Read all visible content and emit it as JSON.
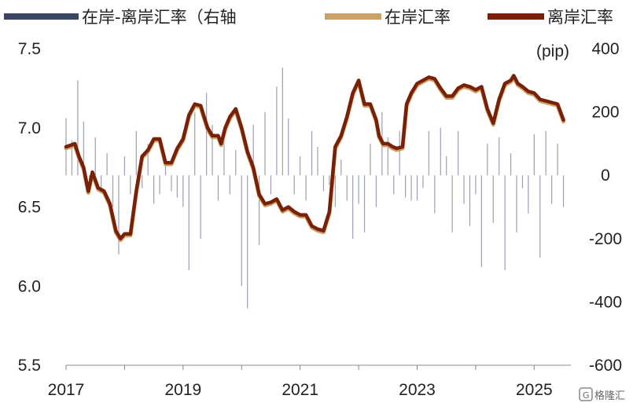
{
  "chart_data": {
    "type": "line",
    "legend": [
      {
        "label": "在岸-离岸汇率（右轴",
        "color": "#3b4566",
        "kind": "bar"
      },
      {
        "label": "在岸汇率",
        "color": "#c9a266",
        "kind": "line"
      },
      {
        "label": "离岸汇率",
        "color": "#7a2006",
        "kind": "line"
      }
    ],
    "legend_placement": "top",
    "y_left": {
      "ylim": [
        5.5,
        7.5
      ],
      "ticks": [
        "5.5",
        "6.0",
        "6.5",
        "7.0",
        "7.5"
      ]
    },
    "y_right": {
      "ylim": [
        -600,
        400
      ],
      "ticks": [
        "-600",
        "-400",
        "-200",
        "0",
        "200",
        "400"
      ],
      "unit": "(pip)"
    },
    "x_axis": {
      "xlim": [
        2017.0,
        2025.6
      ],
      "ticks": [
        "2017",
        "2019",
        "2021",
        "2023",
        "2025"
      ]
    },
    "grid": false,
    "series": [
      {
        "name": "离岸汇率",
        "color": "#7a2006",
        "x": [
          2017.0,
          2017.08,
          2017.15,
          2017.22,
          2017.3,
          2017.38,
          2017.45,
          2017.55,
          2017.65,
          2017.75,
          2017.85,
          2017.93,
          2018.0,
          2018.1,
          2018.2,
          2018.3,
          2018.4,
          2018.5,
          2018.6,
          2018.7,
          2018.8,
          2018.9,
          2019.0,
          2019.1,
          2019.2,
          2019.3,
          2019.35,
          2019.42,
          2019.5,
          2019.6,
          2019.65,
          2019.72,
          2019.8,
          2019.9,
          2020.0,
          2020.1,
          2020.2,
          2020.3,
          2020.4,
          2020.5,
          2020.6,
          2020.7,
          2020.8,
          2020.9,
          2021.0,
          2021.1,
          2021.2,
          2021.3,
          2021.4,
          2021.5,
          2021.6,
          2021.7,
          2021.8,
          2021.9,
          2022.0,
          2022.1,
          2022.2,
          2022.3,
          2022.35,
          2022.42,
          2022.5,
          2022.58,
          2022.65,
          2022.75,
          2022.82,
          2022.9,
          2023.0,
          2023.1,
          2023.2,
          2023.3,
          2023.4,
          2023.5,
          2023.6,
          2023.7,
          2023.8,
          2023.9,
          2024.0,
          2024.1,
          2024.2,
          2024.3,
          2024.4,
          2024.5,
          2024.6,
          2024.65,
          2024.72,
          2024.8,
          2024.9,
          2025.0,
          2025.1,
          2025.2,
          2025.3,
          2025.4,
          2025.5
        ],
        "values": [
          6.88,
          6.89,
          6.9,
          6.82,
          6.75,
          6.6,
          6.72,
          6.62,
          6.6,
          6.52,
          6.35,
          6.3,
          6.33,
          6.33,
          6.6,
          6.82,
          6.86,
          6.93,
          6.93,
          6.78,
          6.78,
          6.87,
          6.93,
          7.08,
          7.15,
          7.14,
          7.08,
          7.0,
          6.95,
          6.95,
          6.9,
          7.0,
          7.07,
          7.12,
          7.0,
          6.85,
          6.75,
          6.58,
          6.52,
          6.53,
          6.55,
          6.48,
          6.5,
          6.47,
          6.45,
          6.45,
          6.38,
          6.36,
          6.35,
          6.47,
          6.88,
          6.95,
          7.07,
          7.22,
          7.3,
          7.15,
          7.15,
          7.05,
          6.95,
          6.9,
          6.9,
          6.88,
          6.87,
          6.88,
          7.15,
          7.22,
          7.28,
          7.3,
          7.32,
          7.31,
          7.25,
          7.2,
          7.2,
          7.25,
          7.27,
          7.26,
          7.24,
          7.26,
          7.12,
          7.03,
          7.18,
          7.28,
          7.3,
          7.33,
          7.28,
          7.26,
          7.23,
          7.22,
          7.18,
          7.17,
          7.16,
          7.15,
          7.05
        ]
      },
      {
        "name": "在岸汇率",
        "color": "#c9a266",
        "x": [
          2017.0,
          2017.08,
          2017.15,
          2017.22,
          2017.3,
          2017.38,
          2017.45,
          2017.55,
          2017.65,
          2017.75,
          2017.85,
          2017.93,
          2018.0,
          2018.1,
          2018.2,
          2018.3,
          2018.4,
          2018.5,
          2018.6,
          2018.7,
          2018.8,
          2018.9,
          2019.0,
          2019.1,
          2019.2,
          2019.3,
          2019.35,
          2019.42,
          2019.5,
          2019.6,
          2019.65,
          2019.72,
          2019.8,
          2019.9,
          2020.0,
          2020.1,
          2020.2,
          2020.3,
          2020.4,
          2020.5,
          2020.6,
          2020.7,
          2020.8,
          2020.9,
          2021.0,
          2021.1,
          2021.2,
          2021.3,
          2021.4,
          2021.5,
          2021.6,
          2021.7,
          2021.8,
          2021.9,
          2022.0,
          2022.1,
          2022.2,
          2022.3,
          2022.35,
          2022.42,
          2022.5,
          2022.58,
          2022.65,
          2022.75,
          2022.82,
          2022.9,
          2023.0,
          2023.1,
          2023.2,
          2023.3,
          2023.4,
          2023.5,
          2023.6,
          2023.7,
          2023.8,
          2023.9,
          2024.0,
          2024.1,
          2024.2,
          2024.3,
          2024.4,
          2024.5,
          2024.6,
          2024.65,
          2024.72,
          2024.8,
          2024.9,
          2025.0,
          2025.1,
          2025.2,
          2025.3,
          2025.4,
          2025.5
        ],
        "values": [
          6.87,
          6.88,
          6.89,
          6.81,
          6.74,
          6.59,
          6.71,
          6.61,
          6.59,
          6.51,
          6.34,
          6.29,
          6.32,
          6.32,
          6.59,
          6.81,
          6.85,
          6.92,
          6.92,
          6.77,
          6.77,
          6.86,
          6.92,
          7.07,
          7.14,
          7.13,
          7.07,
          6.99,
          6.94,
          6.94,
          6.89,
          6.99,
          7.06,
          7.11,
          6.99,
          6.84,
          6.74,
          6.57,
          6.51,
          6.52,
          6.54,
          6.47,
          6.49,
          6.46,
          6.44,
          6.44,
          6.37,
          6.35,
          6.34,
          6.46,
          6.87,
          6.94,
          7.06,
          7.21,
          7.29,
          7.14,
          7.14,
          7.04,
          6.94,
          6.89,
          6.89,
          6.87,
          6.86,
          6.87,
          7.14,
          7.21,
          7.27,
          7.29,
          7.31,
          7.3,
          7.24,
          7.19,
          7.19,
          7.24,
          7.26,
          7.25,
          7.23,
          7.25,
          7.11,
          7.02,
          7.17,
          7.27,
          7.29,
          7.32,
          7.27,
          7.25,
          7.22,
          7.21,
          7.17,
          7.16,
          7.15,
          7.14,
          7.04
        ]
      },
      {
        "name": "在岸-离岸汇率（右轴",
        "color": "#3b4566",
        "type": "bar",
        "x": [
          2017.0,
          2017.1,
          2017.2,
          2017.3,
          2017.4,
          2017.5,
          2017.6,
          2017.7,
          2017.8,
          2017.9,
          2018.0,
          2018.1,
          2018.2,
          2018.3,
          2018.4,
          2018.5,
          2018.6,
          2018.7,
          2018.8,
          2018.9,
          2019.0,
          2019.1,
          2019.2,
          2019.3,
          2019.4,
          2019.5,
          2019.6,
          2019.7,
          2019.8,
          2019.9,
          2020.0,
          2020.1,
          2020.2,
          2020.3,
          2020.4,
          2020.5,
          2020.6,
          2020.7,
          2020.8,
          2020.9,
          2021.0,
          2021.1,
          2021.2,
          2021.3,
          2021.4,
          2021.5,
          2021.6,
          2021.7,
          2021.8,
          2021.9,
          2022.0,
          2022.1,
          2022.2,
          2022.3,
          2022.4,
          2022.5,
          2022.6,
          2022.7,
          2022.8,
          2022.9,
          2023.0,
          2023.1,
          2023.2,
          2023.3,
          2023.4,
          2023.5,
          2023.6,
          2023.7,
          2023.8,
          2023.9,
          2024.0,
          2024.1,
          2024.2,
          2024.3,
          2024.4,
          2024.5,
          2024.6,
          2024.7,
          2024.8,
          2024.9,
          2025.0,
          2025.1,
          2025.2,
          2025.3,
          2025.4,
          2025.5
        ],
        "values": [
          180,
          110,
          300,
          170,
          -60,
          120,
          -50,
          70,
          -100,
          -250,
          60,
          -60,
          140,
          -40,
          100,
          -90,
          -60,
          50,
          -50,
          -70,
          -100,
          -300,
          200,
          -200,
          260,
          160,
          -80,
          120,
          -60,
          80,
          -350,
          -420,
          160,
          -220,
          200,
          -60,
          280,
          340,
          180,
          -60,
          60,
          -80,
          140,
          90,
          -50,
          -30,
          -100,
          50,
          -80,
          -200,
          -90,
          -180,
          100,
          -100,
          200,
          120,
          -60,
          140,
          -70,
          -80,
          -80,
          -40,
          140,
          -120,
          150,
          60,
          -180,
          140,
          -90,
          -160,
          -60,
          -290,
          100,
          -150,
          120,
          -300,
          70,
          -180,
          -40,
          -120,
          130,
          -260,
          140,
          -90,
          100,
          -100
        ]
      }
    ]
  },
  "watermark": "格隆汇"
}
